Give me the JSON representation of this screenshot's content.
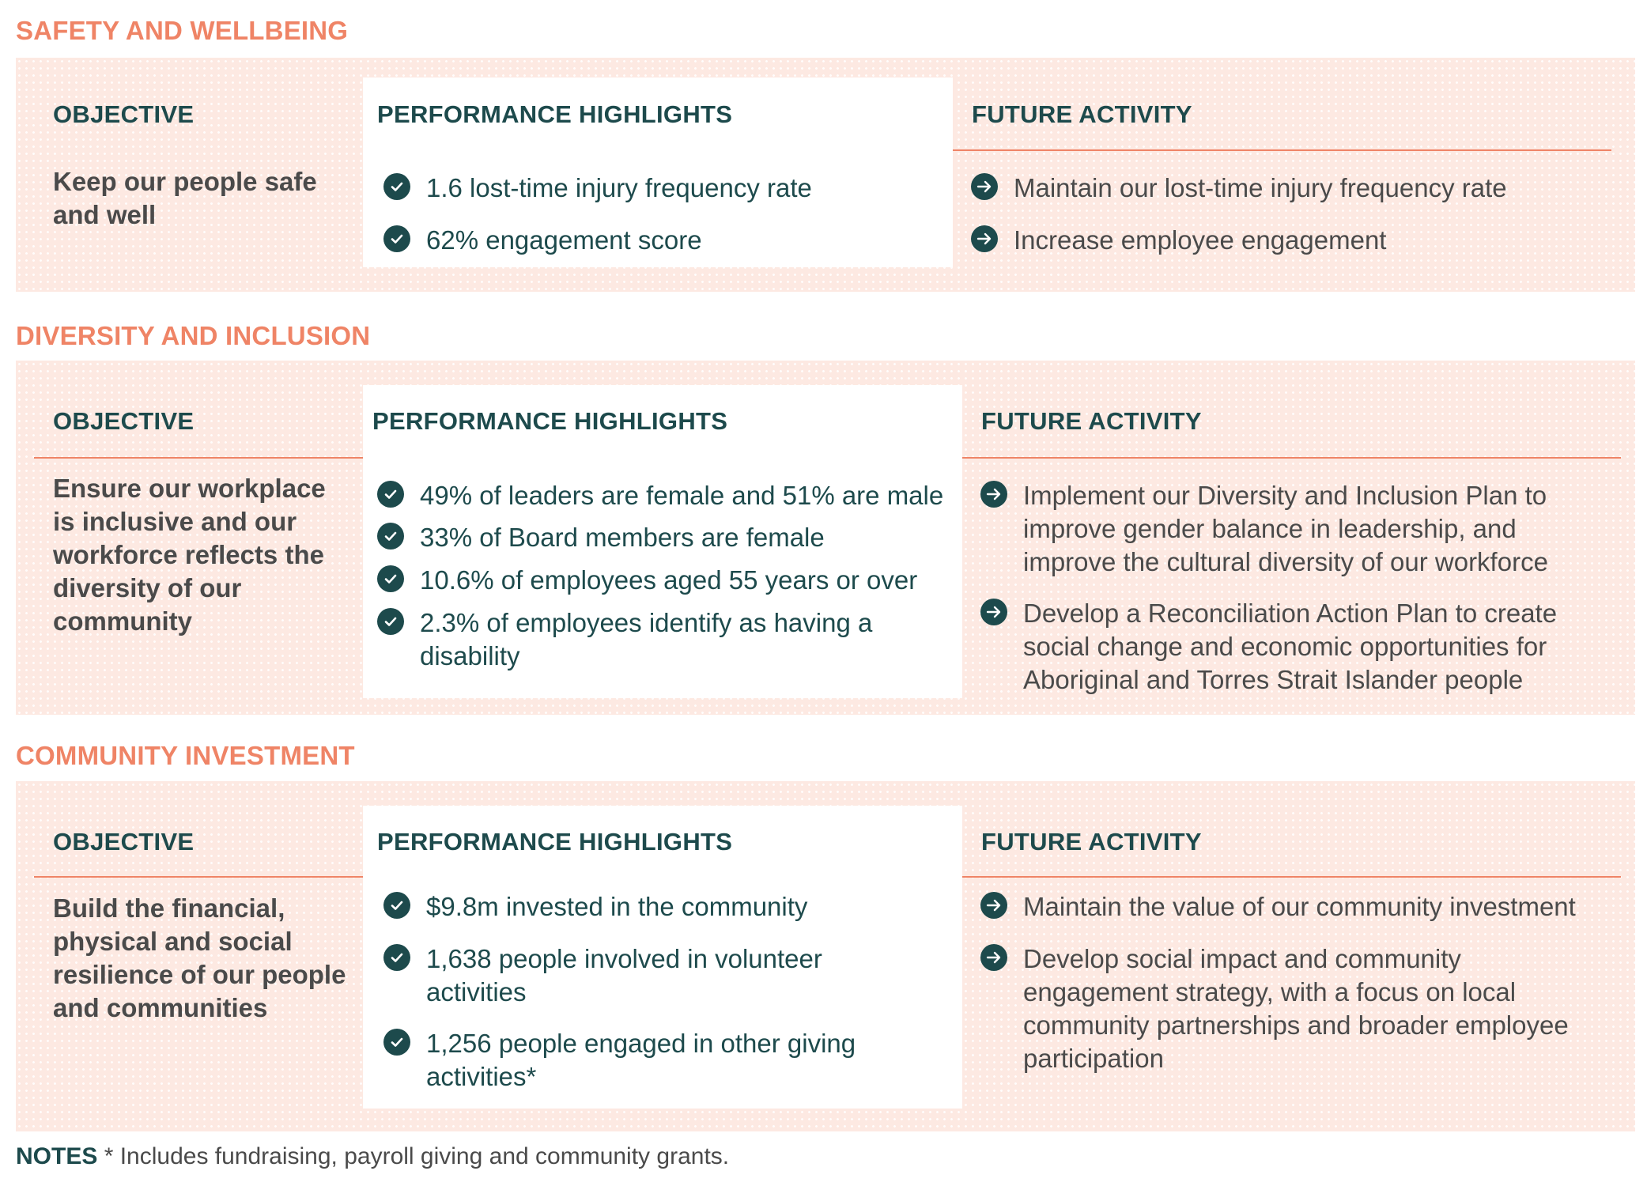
{
  "columns": {
    "objective": "OBJECTIVE",
    "performance": "PERFORMANCE HIGHLIGHTS",
    "future": "FUTURE ACTIVITY"
  },
  "sections": [
    {
      "title": "SAFETY AND WELLBEING",
      "objective": "Keep our people safe and well",
      "highlights": [
        "1.6 lost-time injury frequency rate",
        "62% engagement score"
      ],
      "future": [
        "Maintain our lost-time injury frequency rate",
        "Increase employee engagement"
      ]
    },
    {
      "title": "DIVERSITY AND INCLUSION",
      "objective": "Ensure our workplace is inclusive and our workforce reflects the diversity of our community",
      "highlights": [
        "49% of leaders are female and 51% are male",
        "33% of Board members are female",
        "10.6% of employees aged 55 years or over",
        "2.3% of employees identify as having a disability"
      ],
      "future": [
        "Implement our Diversity and Inclusion Plan to improve gender balance in leadership, and improve the cultural diversity of our workforce",
        "Develop a Reconciliation Action Plan to create social change and economic opportunities for Aboriginal and Torres Strait Islander people"
      ]
    },
    {
      "title": "COMMUNITY INVESTMENT",
      "objective": "Build the financial, physical and social resilience of our people and communities",
      "highlights": [
        "$9.8m invested in the community",
        "1,638 people involved in volunteer activities",
        "1,256 people engaged in other giving activities*"
      ],
      "future": [
        "Maintain the value of our community investment",
        "Develop social impact and community engagement strategy, with a focus on local community partnerships and broader employee participation"
      ]
    }
  ],
  "notes": {
    "label": "NOTES",
    "text": " * Includes fundraising, payroll giving and community grants."
  },
  "colors": {
    "accent": "#ef8466",
    "panel": "#fde9e2",
    "heading": "#1d4a4c",
    "body": "#4a4a4a"
  },
  "icons": {
    "highlight": "check-circle-icon",
    "future": "arrow-right-circle-icon"
  }
}
